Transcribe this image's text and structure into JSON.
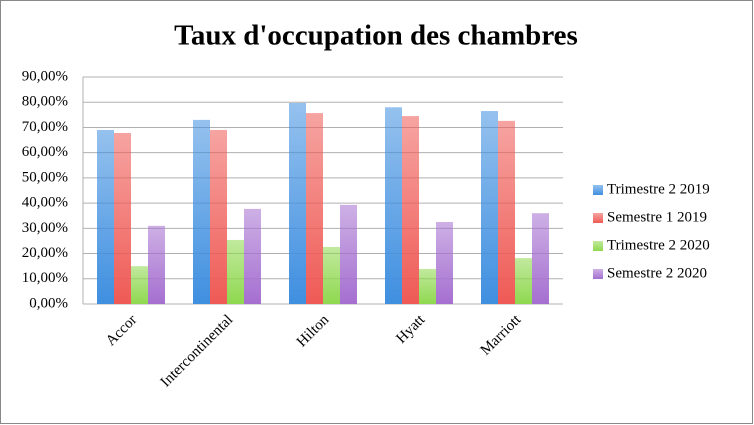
{
  "chart_data": {
    "type": "bar",
    "title": "Taux d'occupation des chambres",
    "categories": [
      "Accor",
      "Intercontinental",
      "Hilton",
      "Hyatt",
      "Marriott"
    ],
    "series": [
      {
        "name": "Trimestre 2 2019",
        "color": "#3f8fe0",
        "values": [
          69,
          73,
          79.7,
          78,
          76.5
        ]
      },
      {
        "name": "Semestre 1 2019",
        "color": "#ef5a55",
        "values": [
          67.8,
          69,
          75.7,
          74.5,
          72.6
        ]
      },
      {
        "name": "Trimestre 2 2020",
        "color": "#8fd84f",
        "values": [
          15,
          25.4,
          22.6,
          13.9,
          18.2
        ]
      },
      {
        "name": "Semestre 2 2020",
        "color": "#a56fd0",
        "values": [
          31,
          37.7,
          39.3,
          32.5,
          36
        ]
      }
    ],
    "ylim": [
      0,
      90
    ],
    "yticks": [
      {
        "value": 0,
        "label": "0,00%"
      },
      {
        "value": 10,
        "label": "10,00%"
      },
      {
        "value": 20,
        "label": "20,00%"
      },
      {
        "value": 30,
        "label": "30,00%"
      },
      {
        "value": 40,
        "label": "40,00%"
      },
      {
        "value": 50,
        "label": "50,00%"
      },
      {
        "value": 60,
        "label": "60,00%"
      },
      {
        "value": 70,
        "label": "70,00%"
      },
      {
        "value": 80,
        "label": "80,00%"
      },
      {
        "value": 90,
        "label": "90,00%"
      }
    ],
    "grid": true,
    "legend": "right"
  }
}
